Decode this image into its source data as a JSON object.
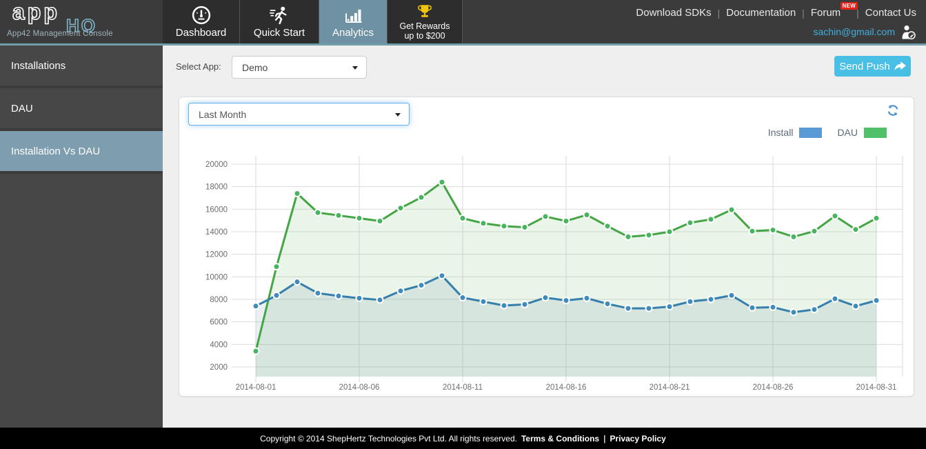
{
  "header": {
    "logo": {
      "word1": "app",
      "word2": "HQ",
      "subtitle": "App42 Management Console"
    },
    "tabs": [
      {
        "label": "Dashboard"
      },
      {
        "label": "Quick Start"
      },
      {
        "label": "Analytics"
      },
      {
        "label": "Get Rewards",
        "label2": "up to $200"
      }
    ],
    "links": [
      "Download SDKs",
      "Documentation",
      "Forum",
      "Contact Us"
    ],
    "forum_badge": "NEW",
    "email": "sachin@gmail.com"
  },
  "sidebar": {
    "items": [
      {
        "label": "Installations"
      },
      {
        "label": "DAU"
      },
      {
        "label": "Installation Vs DAU"
      }
    ]
  },
  "toolbar": {
    "select_app_label": "Select App:",
    "app_selected": "Demo",
    "send_push_label": "Send Push"
  },
  "panel": {
    "range_selected": "Last Month",
    "legend": [
      {
        "label": "Install",
        "color": "#5b9bd5"
      },
      {
        "label": "DAU",
        "color": "#50c168"
      }
    ]
  },
  "chart_data": {
    "type": "line",
    "title": "Installation Vs DAU",
    "x": [
      "2014-08-01",
      "2014-08-02",
      "2014-08-03",
      "2014-08-04",
      "2014-08-05",
      "2014-08-06",
      "2014-08-07",
      "2014-08-08",
      "2014-08-09",
      "2014-08-10",
      "2014-08-11",
      "2014-08-12",
      "2014-08-13",
      "2014-08-14",
      "2014-08-15",
      "2014-08-16",
      "2014-08-17",
      "2014-08-18",
      "2014-08-19",
      "2014-08-20",
      "2014-08-21",
      "2014-08-22",
      "2014-08-23",
      "2014-08-24",
      "2014-08-25",
      "2014-08-26",
      "2014-08-27",
      "2014-08-28",
      "2014-08-29",
      "2014-08-30",
      "2014-08-31"
    ],
    "x_tick_indices": [
      0,
      5,
      10,
      15,
      20,
      25,
      30
    ],
    "x_tick_labels": [
      "2014-08-01",
      "2014-08-06",
      "2014-08-11",
      "2014-08-16",
      "2014-08-21",
      "2014-08-26",
      "2014-08-31"
    ],
    "yticks": [
      2000,
      4000,
      6000,
      8000,
      10000,
      12000,
      14000,
      16000,
      18000,
      20000
    ],
    "ylim": [
      1100,
      20750
    ],
    "grid": true,
    "legend_position": "top-right",
    "series": [
      {
        "name": "DAU",
        "line_color": "#45a545",
        "marker_color": "#48b45f",
        "fill_color": "rgba(90,180,90,0.13)",
        "values": [
          3400,
          10900,
          17400,
          15700,
          15450,
          15200,
          14950,
          16100,
          17050,
          18400,
          15200,
          14750,
          14500,
          14400,
          15350,
          14950,
          15500,
          14500,
          13550,
          13700,
          14000,
          14800,
          15100,
          15950,
          14050,
          14150,
          13550,
          14050,
          15400,
          14200,
          15200
        ]
      },
      {
        "name": "Install",
        "line_color": "#367fad",
        "marker_color": "#3f8bbb",
        "fill_color": "rgba(70,120,150,0.12)",
        "values": [
          7400,
          8350,
          9550,
          8550,
          8300,
          8100,
          7950,
          8750,
          9250,
          10100,
          8150,
          7800,
          7450,
          7550,
          8150,
          7900,
          8100,
          7600,
          7200,
          7200,
          7350,
          7800,
          8000,
          8350,
          7250,
          7300,
          6850,
          7100,
          8050,
          7400,
          7900
        ]
      }
    ]
  },
  "footer": {
    "copyright": "Copyright © 2014 ShepHertz Technologies Pvt Ltd. All rights reserved.",
    "links": [
      "Terms & Conditions",
      "Privacy Policy"
    ],
    "separator": "|"
  }
}
